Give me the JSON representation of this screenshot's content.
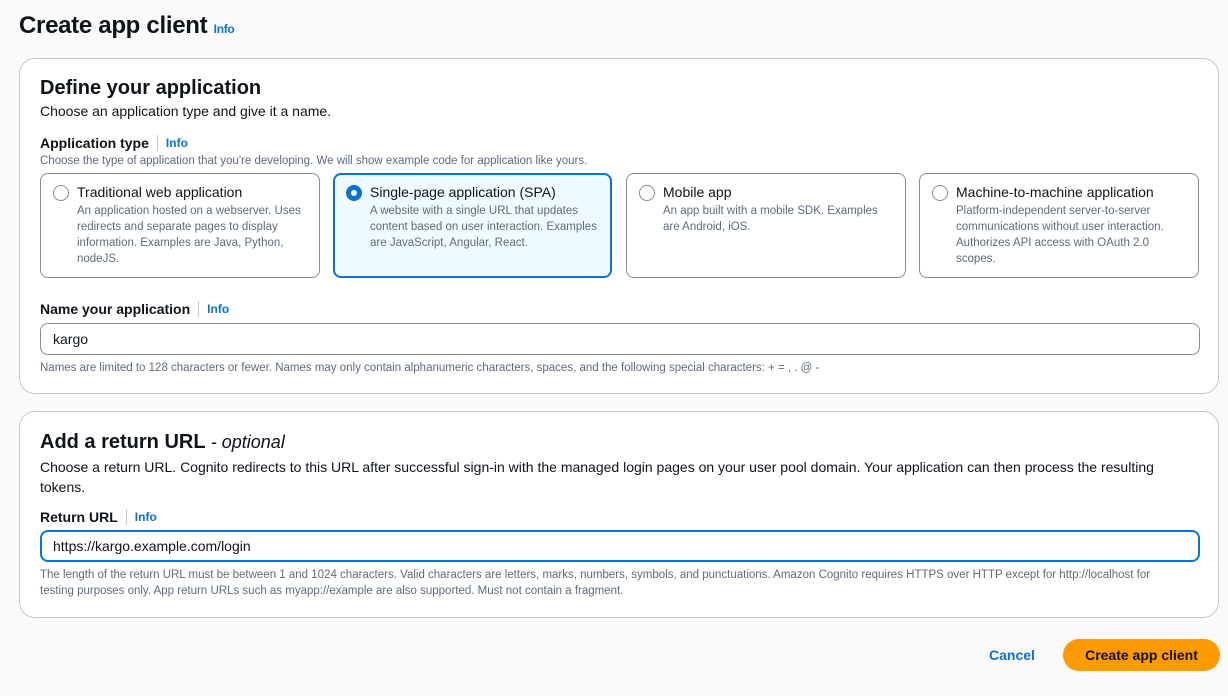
{
  "page": {
    "title": "Create app client",
    "info": "Info"
  },
  "define": {
    "title": "Define your application",
    "description": "Choose an application type and give it a name.",
    "app_type_label": "Application type",
    "app_type_info": "Info",
    "app_type_hint": "Choose the type of application that you're developing. We will show example code for application like yours.",
    "options": [
      {
        "title": "Traditional web application",
        "description": "An application hosted on a webserver. Uses redirects and separate pages to display information. Examples are Java, Python, nodeJS.",
        "selected": false
      },
      {
        "title": "Single-page application (SPA)",
        "description": "A website with a single URL that updates content based on user interaction. Examples are JavaScript, Angular, React.",
        "selected": true
      },
      {
        "title": "Mobile app",
        "description": "An app built with a mobile SDK. Examples are Android, iOS.",
        "selected": false
      },
      {
        "title": "Machine-to-machine application",
        "description": "Platform-independent server-to-server communications without user interaction. Authorizes API access with OAuth 2.0 scopes.",
        "selected": false
      }
    ],
    "name_label": "Name your application",
    "name_info": "Info",
    "name_value": "kargo",
    "name_hint": "Names are limited to 128 characters or fewer. Names may only contain alphanumeric characters, spaces, and the following special characters: + = , . @ -"
  },
  "return": {
    "title": "Add a return URL",
    "optional": "- optional",
    "description": "Choose a return URL. Cognito redirects to this URL after successful sign-in with the managed login pages on your user pool domain. Your application can then process the resulting tokens.",
    "label": "Return URL",
    "info": "Info",
    "value": "https://kargo.example.com/login",
    "hint": "The length of the return URL must be between 1 and 1024 characters. Valid characters are letters, marks, numbers, symbols, and punctuations. Amazon Cognito requires HTTPS over HTTP except for http://localhost for testing purposes only. App return URLs such as myapp://example are also supported. Must not contain a fragment."
  },
  "actions": {
    "cancel": "Cancel",
    "create": "Create app client"
  },
  "colors": {
    "accent": "#0972d3",
    "primary_button": "#ff9900"
  }
}
